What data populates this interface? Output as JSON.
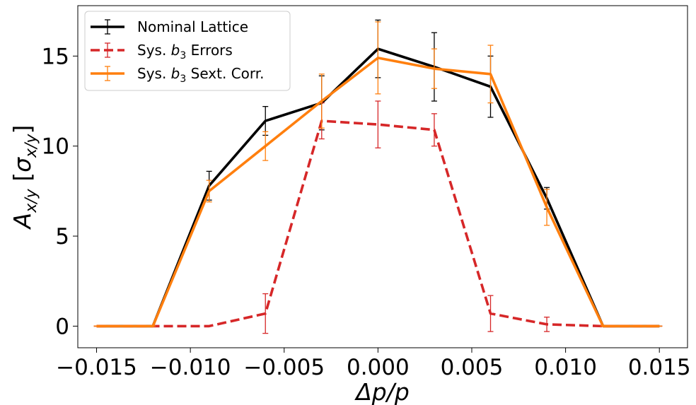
{
  "chart_data": {
    "type": "line",
    "title": "",
    "xlabel": "Δp/p",
    "ylabel_main": "A",
    "ylabel_main_sub": "x/y",
    "ylabel_unit": "σ",
    "ylabel_unit_sub": "x/y",
    "xlim": [
      -0.016,
      0.0165
    ],
    "ylim": [
      -1.2,
      17.8
    ],
    "xticks": [
      -0.015,
      -0.01,
      -0.005,
      0.0,
      0.005,
      0.01,
      0.015
    ],
    "xtick_labels": [
      "−0.015",
      "−0.010",
      "−0.005",
      "0.000",
      "0.005",
      "0.010",
      "0.015"
    ],
    "yticks": [
      0,
      5,
      10,
      15
    ],
    "ytick_labels": [
      "0",
      "5",
      "10",
      "15"
    ],
    "grid": false,
    "legend_position": "top-left",
    "x": [
      -0.015,
      -0.012,
      -0.009,
      -0.006,
      -0.003,
      0.0,
      0.003,
      0.006,
      0.009,
      0.012,
      0.015
    ],
    "series": [
      {
        "name": "Nominal Lattice",
        "color": "#000000",
        "style": "solid",
        "values": [
          0,
          0,
          7.8,
          11.4,
          12.4,
          15.4,
          14.4,
          13.3,
          7.1,
          0,
          0
        ],
        "errors": [
          0,
          0,
          0.8,
          0.8,
          1.5,
          1.6,
          1.9,
          1.7,
          0.6,
          0,
          0
        ]
      },
      {
        "name_prefix": "Sys. ",
        "name_var": "b",
        "name_sub": "3",
        "name_suffix": " Errors",
        "color": "#d62728",
        "style": "dashed",
        "values": [
          0,
          0,
          0,
          0.7,
          11.4,
          11.2,
          10.9,
          0.7,
          0.1,
          0,
          0
        ],
        "errors": [
          0,
          0,
          0,
          1.1,
          1.0,
          1.3,
          0.9,
          1.0,
          0.4,
          0,
          0
        ]
      },
      {
        "name_prefix": "Sys. ",
        "name_var": "b",
        "name_sub": "3",
        "name_suffix": " Sext. Corr.",
        "color": "#ff7f0e",
        "style": "solid",
        "values": [
          0,
          0,
          7.5,
          10.0,
          12.5,
          14.9,
          14.3,
          14.0,
          6.6,
          0,
          0
        ],
        "errors": [
          0,
          0,
          0.6,
          0.8,
          1.5,
          2.0,
          1.1,
          1.6,
          1.0,
          0,
          0
        ]
      }
    ]
  }
}
